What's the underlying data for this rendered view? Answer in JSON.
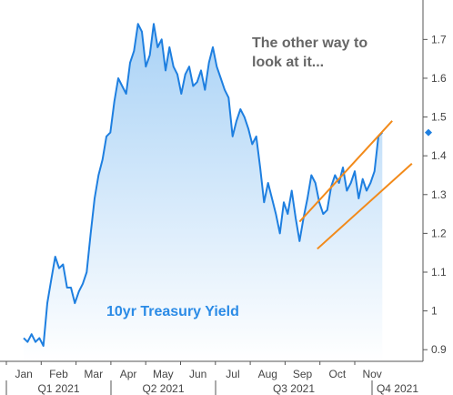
{
  "chart_data": {
    "type": "area",
    "series_label": "10yr Treasury Yield",
    "annotation": "The other way to look at it...",
    "annotation_lines": [
      "The other way to",
      "look at it..."
    ],
    "x_month_labels": [
      "Jan",
      "Feb",
      "Mar",
      "Apr",
      "May",
      "Jun",
      "Jul",
      "Aug",
      "Sep",
      "Oct",
      "Nov"
    ],
    "x_quarter_labels": [
      "Q1 2021",
      "Q2 2021",
      "Q3 2021",
      "Q4 2021"
    ],
    "y_tick_labels": [
      "0.9",
      "1",
      "1.1",
      "1.2",
      "1.3",
      "1.4",
      "1.5",
      "1.6",
      "1.7"
    ],
    "ylim": [
      0.87,
      1.79
    ],
    "xlim_month_index": [
      0,
      10.5
    ],
    "last_value": 1.46,
    "y_axis_position": "right",
    "grid": false,
    "colors": {
      "line": "#1e7fe0",
      "fill_top": "#a9d2f6",
      "fill_bottom": "#ffffff",
      "channel": "#f28a1a",
      "marker": "#1e7fe0"
    },
    "x": [
      0.0,
      0.1,
      0.2,
      0.3,
      0.4,
      0.5,
      0.6,
      0.7,
      0.8,
      0.9,
      1.0,
      1.1,
      1.2,
      1.3,
      1.4,
      1.5,
      1.6,
      1.7,
      1.8,
      1.9,
      2.0,
      2.1,
      2.2,
      2.3,
      2.4,
      2.5,
      2.6,
      2.7,
      2.8,
      2.9,
      3.0,
      3.1,
      3.2,
      3.3,
      3.4,
      3.5,
      3.6,
      3.7,
      3.8,
      3.9,
      4.0,
      4.1,
      4.2,
      4.3,
      4.4,
      4.5,
      4.6,
      4.7,
      4.8,
      4.9,
      5.0,
      5.1,
      5.2,
      5.3,
      5.4,
      5.5,
      5.6,
      5.7,
      5.8,
      5.9,
      6.0,
      6.1,
      6.2,
      6.3,
      6.4,
      6.5,
      6.6,
      6.7,
      6.8,
      6.9,
      7.0,
      7.1,
      7.2,
      7.3,
      7.4,
      7.5,
      7.6,
      7.7,
      7.8,
      7.9,
      8.0,
      8.1,
      8.2,
      8.3,
      8.4,
      8.5,
      8.6,
      8.7,
      8.8,
      8.9,
      9.0,
      9.1
    ],
    "values": [
      0.93,
      0.92,
      0.94,
      0.92,
      0.93,
      0.91,
      1.02,
      1.08,
      1.14,
      1.11,
      1.12,
      1.06,
      1.06,
      1.02,
      1.05,
      1.07,
      1.1,
      1.2,
      1.29,
      1.35,
      1.39,
      1.45,
      1.46,
      1.54,
      1.6,
      1.58,
      1.56,
      1.64,
      1.67,
      1.74,
      1.72,
      1.63,
      1.66,
      1.74,
      1.68,
      1.7,
      1.62,
      1.68,
      1.63,
      1.61,
      1.56,
      1.61,
      1.63,
      1.58,
      1.59,
      1.62,
      1.57,
      1.64,
      1.68,
      1.63,
      1.6,
      1.57,
      1.55,
      1.45,
      1.49,
      1.52,
      1.5,
      1.47,
      1.43,
      1.45,
      1.37,
      1.28,
      1.33,
      1.29,
      1.25,
      1.2,
      1.28,
      1.25,
      1.31,
      1.24,
      1.18,
      1.24,
      1.29,
      1.35,
      1.33,
      1.28,
      1.25,
      1.26,
      1.32,
      1.35,
      1.33,
      1.37,
      1.31,
      1.33,
      1.36,
      1.29,
      1.34,
      1.31,
      1.33,
      1.36,
      1.45,
      1.46
    ],
    "channel_lines": [
      {
        "x": [
          7.0,
          9.35
        ],
        "y": [
          1.23,
          1.49
        ]
      },
      {
        "x": [
          7.45,
          9.85
        ],
        "y": [
          1.16,
          1.38
        ]
      }
    ]
  }
}
